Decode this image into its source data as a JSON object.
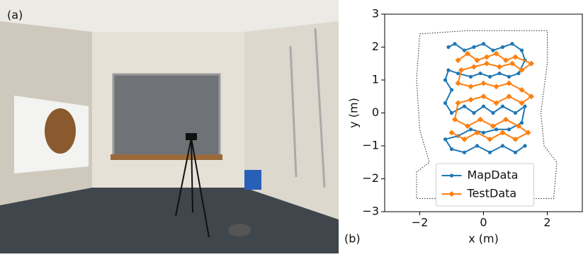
{
  "panel_a_label": "(a)",
  "chart_data": {
    "type": "line",
    "panel_label": "(b)",
    "xlabel": "x (m)",
    "ylabel": "y (m)",
    "xlim": [
      -3.1,
      3.1
    ],
    "ylim": [
      -3,
      3
    ],
    "xticks": [
      {
        "value": -2,
        "label": "−2"
      },
      0,
      2
    ],
    "yticks": [
      {
        "value": -3,
        "label": "−3"
      },
      {
        "value": -2,
        "label": "−2"
      },
      {
        "value": -1,
        "label": "−1"
      },
      0,
      1,
      2,
      3
    ],
    "legend": "lower center",
    "boundary": {
      "color": "#222222",
      "x": [
        -2.0,
        -0.5,
        1.0,
        2.0,
        2.0,
        1.8,
        1.9,
        2.3,
        2.2,
        0.5,
        -1.5,
        -2.1,
        -2.1,
        -1.7,
        -2.0,
        -2.1,
        -2.0
      ],
      "y": [
        2.4,
        2.5,
        2.5,
        2.5,
        1.5,
        0,
        -1,
        -1.5,
        -2.6,
        -2.6,
        -2.6,
        -2.6,
        -1.8,
        -1.5,
        -0.5,
        1,
        2.4
      ]
    },
    "series": [
      {
        "name": "MapData",
        "color": "#1f77b4",
        "marker": "circle",
        "x": [
          -1.1,
          -0.9,
          -0.6,
          -0.3,
          0,
          0.3,
          0.6,
          0.9,
          1.2,
          1.3,
          1.1,
          0.8,
          0.5,
          0.2,
          -0.1,
          -0.4,
          -0.8,
          -1.1,
          -1.2,
          -1.0,
          -1.2,
          -1.0,
          -0.6,
          -0.3,
          0,
          0.3,
          0.6,
          1.0,
          1.3,
          1.2,
          0.8,
          0.4,
          0,
          -0.4,
          -0.8,
          -1.2,
          -1.0,
          -0.6,
          -0.2,
          0.2,
          0.6,
          1.0,
          1.3
        ],
        "y": [
          2.0,
          2.1,
          1.9,
          2.0,
          2.1,
          1.9,
          2.0,
          2.1,
          1.9,
          1.6,
          1.2,
          1.1,
          1.2,
          1.1,
          1.2,
          1.1,
          1.2,
          1.3,
          1.0,
          0.7,
          0.3,
          0.0,
          0.2,
          0.0,
          0.2,
          0.0,
          0.2,
          0.0,
          0.2,
          -0.3,
          -0.5,
          -0.5,
          -0.6,
          -0.5,
          -0.7,
          -0.8,
          -1.1,
          -1.2,
          -1.0,
          -1.2,
          -1.0,
          -1.2,
          -1.0
        ]
      },
      {
        "name": "TestData",
        "color": "#ff7f0e",
        "marker": "diamond",
        "x": [
          -0.8,
          -0.5,
          -0.2,
          0.1,
          0.4,
          0.7,
          1.0,
          1.5,
          1.2,
          0.9,
          0.5,
          0.1,
          -0.3,
          -0.7,
          -0.8,
          -0.4,
          0,
          0.4,
          0.8,
          1.2,
          1.5,
          1.2,
          0.8,
          0.4,
          0,
          -0.4,
          -0.8,
          -0.9,
          -0.5,
          -0.1,
          0.3,
          0.7,
          1.1,
          1.4,
          1.0,
          0.6,
          0.2,
          -0.2,
          -0.6,
          -1.0
        ],
        "y": [
          1.6,
          1.8,
          1.6,
          1.7,
          1.8,
          1.6,
          1.7,
          1.5,
          1.3,
          1.5,
          1.4,
          1.5,
          1.4,
          1.3,
          0.9,
          0.8,
          0.9,
          0.8,
          0.9,
          0.7,
          0.5,
          0.3,
          0.5,
          0.3,
          0.5,
          0.4,
          0.3,
          -0.2,
          -0.4,
          -0.2,
          -0.4,
          -0.2,
          -0.4,
          -0.6,
          -0.8,
          -0.6,
          -0.8,
          -0.6,
          -0.8,
          -0.6
        ]
      }
    ]
  }
}
